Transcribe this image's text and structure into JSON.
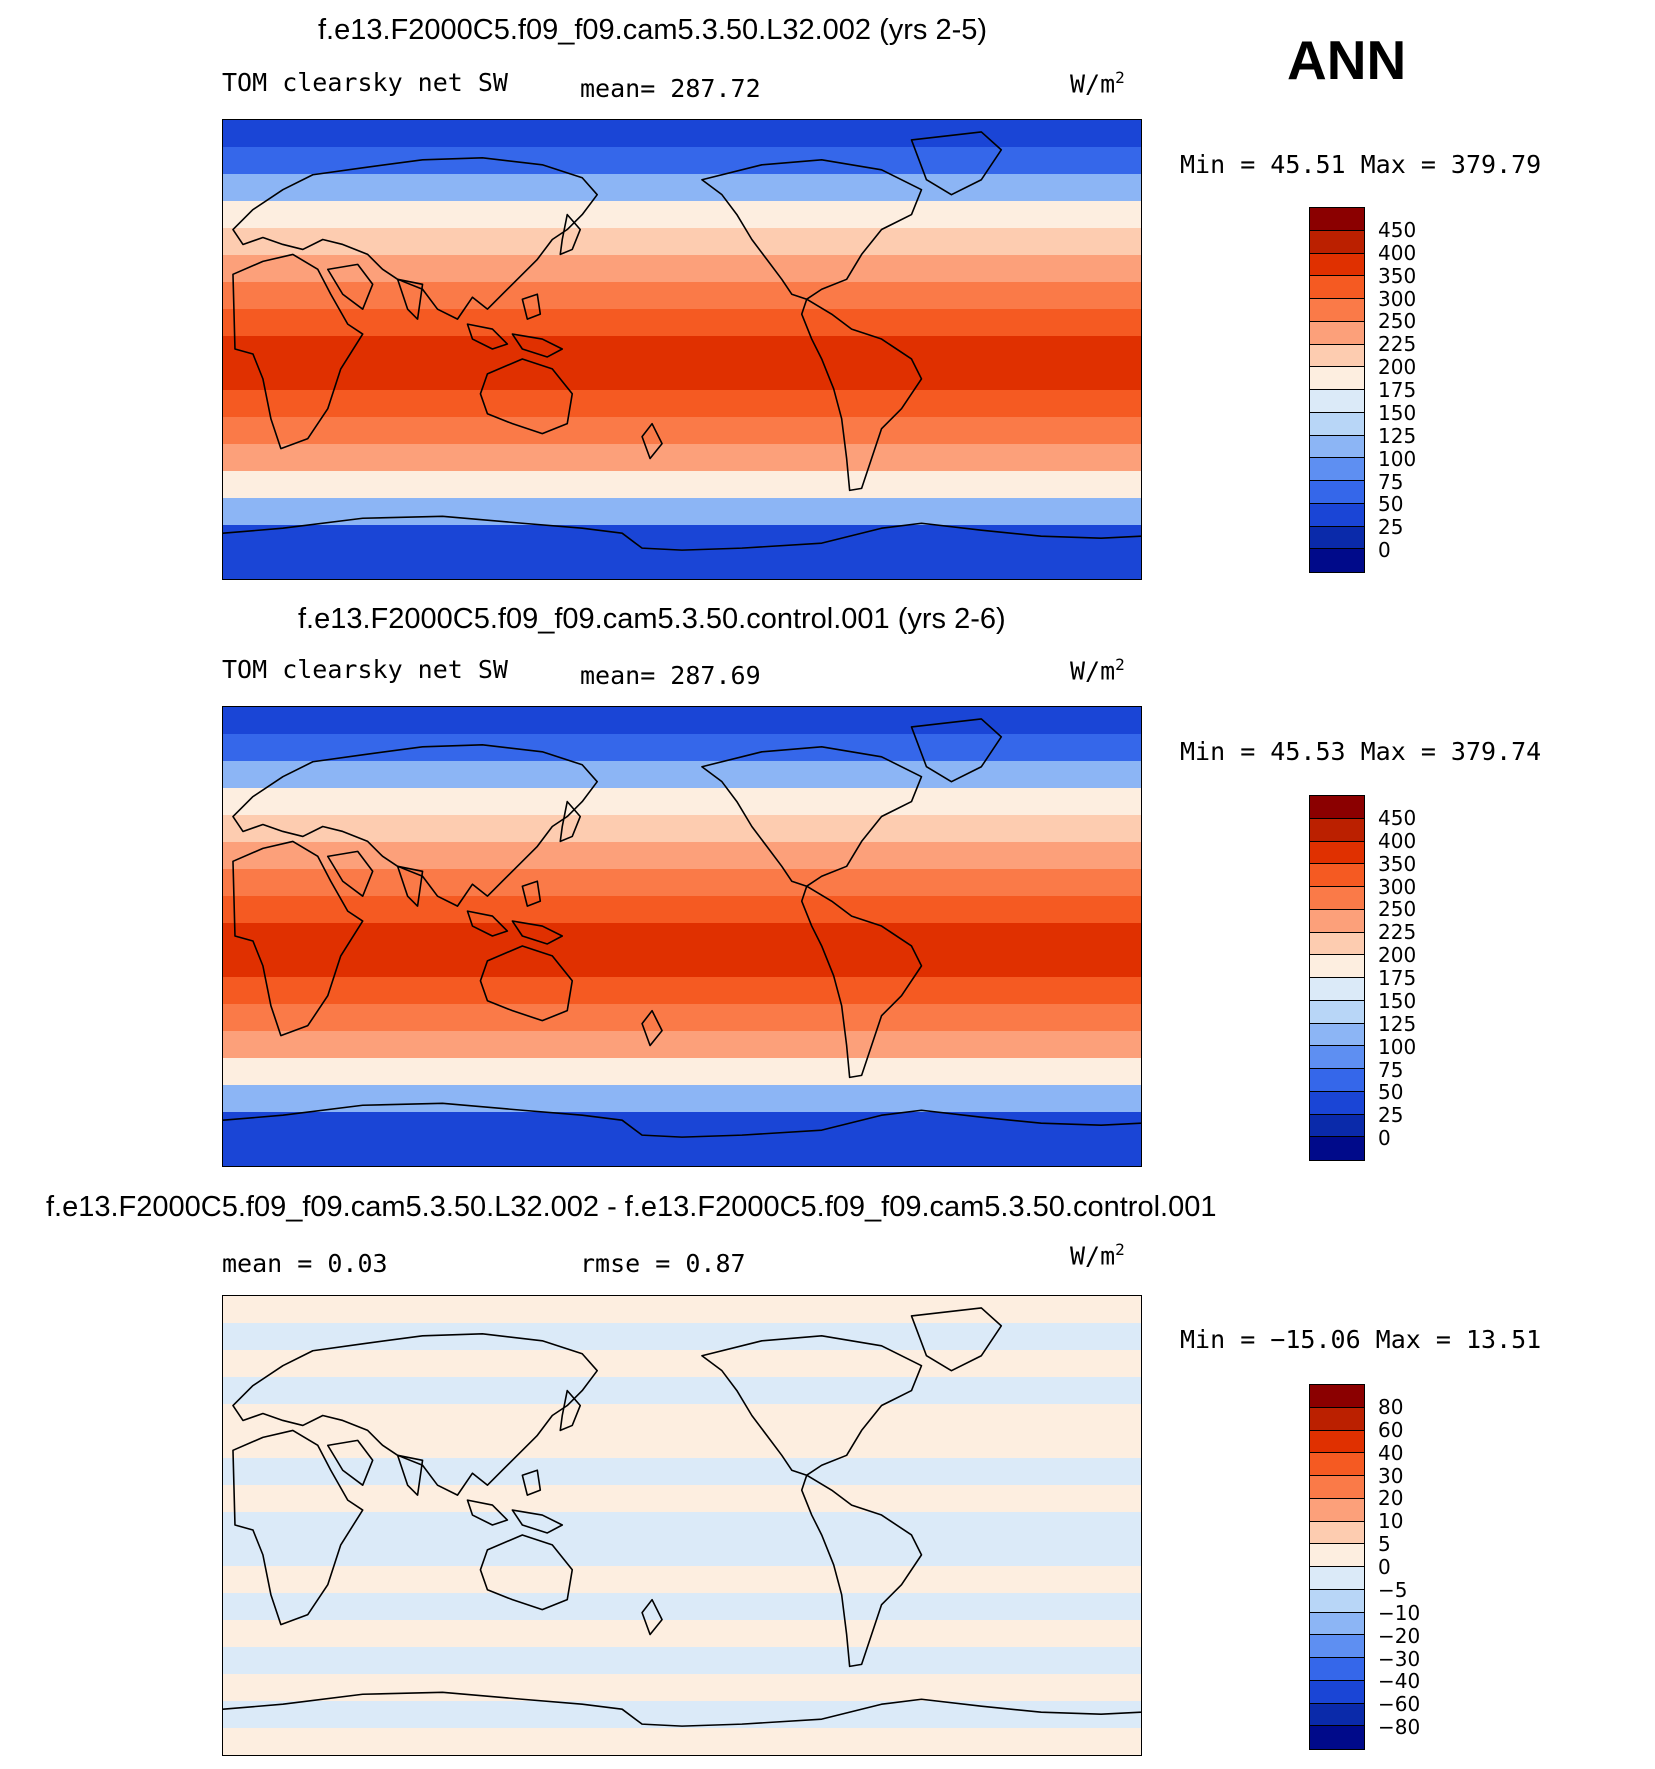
{
  "season": "ANN",
  "panels": [
    {
      "title": "f.e13.F2000C5.f09_f09.cam5.3.50.L32.002 (yrs 2-5)",
      "variable": "TOM clearsky net SW",
      "stat_left": "mean= 287.72",
      "stat_right": "",
      "units": "W/m",
      "units_sup": "2",
      "minmax": "Min =   45.51  Max  =  379.79",
      "colorbar": {
        "labels": [
          "450",
          "400",
          "350",
          "300",
          "250",
          "225",
          "200",
          "175",
          "150",
          "125",
          "100",
          "75",
          "50",
          "25",
          "0"
        ],
        "colors": [
          "#8b0000",
          "#bb2000",
          "#e03000",
          "#f55a22",
          "#fa7a48",
          "#fca07a",
          "#fdccb0",
          "#fdeee0",
          "#dbeaf8",
          "#b8d6f7",
          "#8cb5f5",
          "#5e8ff2",
          "#3567ea",
          "#1a45d6",
          "#0a2aaa",
          "#000a8a"
        ]
      },
      "map_bands": [
        "#1a45d6",
        "#3567ea",
        "#8cb5f5",
        "#fdeee0",
        "#fdccb0",
        "#fca07a",
        "#fa7a48",
        "#f55a22",
        "#e03000",
        "#e03000",
        "#f55a22",
        "#fa7a48",
        "#fca07a",
        "#fdeee0",
        "#8cb5f5",
        "#1a45d6",
        "#1a45d6"
      ]
    },
    {
      "title": "f.e13.F2000C5.f09_f09.cam5.3.50.control.001 (yrs 2-6)",
      "variable": "TOM clearsky net SW",
      "stat_left": "mean= 287.69",
      "stat_right": "",
      "units": "W/m",
      "units_sup": "2",
      "minmax": "Min =   45.53  Max  =  379.74",
      "colorbar": {
        "labels": [
          "450",
          "400",
          "350",
          "300",
          "250",
          "225",
          "200",
          "175",
          "150",
          "125",
          "100",
          "75",
          "50",
          "25",
          "0"
        ],
        "colors": [
          "#8b0000",
          "#bb2000",
          "#e03000",
          "#f55a22",
          "#fa7a48",
          "#fca07a",
          "#fdccb0",
          "#fdeee0",
          "#dbeaf8",
          "#b8d6f7",
          "#8cb5f5",
          "#5e8ff2",
          "#3567ea",
          "#1a45d6",
          "#0a2aaa",
          "#000a8a"
        ]
      },
      "map_bands": [
        "#1a45d6",
        "#3567ea",
        "#8cb5f5",
        "#fdeee0",
        "#fdccb0",
        "#fca07a",
        "#fa7a48",
        "#f55a22",
        "#e03000",
        "#e03000",
        "#f55a22",
        "#fa7a48",
        "#fca07a",
        "#fdeee0",
        "#8cb5f5",
        "#1a45d6",
        "#1a45d6"
      ]
    },
    {
      "title": "f.e13.F2000C5.f09_f09.cam5.3.50.L32.002 - f.e13.F2000C5.f09_f09.cam5.3.50.control.001",
      "variable": "mean =    0.03",
      "stat_left": "rmse =    0.87",
      "stat_right": "",
      "units": "W/m",
      "units_sup": "2",
      "minmax": "Min = −15.06  Max =   13.51",
      "colorbar": {
        "labels": [
          "80",
          "60",
          "40",
          "30",
          "20",
          "10",
          "5",
          "0",
          "−5",
          "−10",
          "−20",
          "−30",
          "−40",
          "−60",
          "−80"
        ],
        "colors": [
          "#8b0000",
          "#bb2000",
          "#e03000",
          "#f55a22",
          "#fa7a48",
          "#fca07a",
          "#fdccb0",
          "#fdeee0",
          "#dbeaf8",
          "#b8d6f7",
          "#8cb5f5",
          "#5e8ff2",
          "#3567ea",
          "#1a45d6",
          "#0a2aaa",
          "#000a8a"
        ]
      },
      "map_bands": [
        "#fdeee0",
        "#dbeaf8",
        "#fdeee0",
        "#dbeaf8",
        "#fdeee0",
        "#fdeee0",
        "#dbeaf8",
        "#fdeee0",
        "#dbeaf8",
        "#dbeaf8",
        "#fdeee0",
        "#dbeaf8",
        "#fdeee0",
        "#dbeaf8",
        "#fdeee0",
        "#dbeaf8",
        "#fdeee0"
      ]
    }
  ]
}
